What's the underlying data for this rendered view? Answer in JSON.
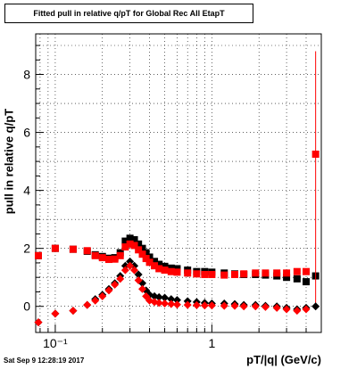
{
  "title": "Fitted pull in relative q/pT for Global Rec All EtapT",
  "footer": "Sat Sep  9 12:28:19 2017",
  "chart_data": {
    "type": "scatter",
    "title": "Fitted pull in relative q/pT for Global Rec All EtapT",
    "xlabel": "pT/|q| (GeV/c)",
    "ylabel": "pull in relative q/pT",
    "x_scale": "log",
    "xlim": [
      0.075,
      5.0
    ],
    "ylim": [
      -0.9,
      9.4
    ],
    "x_ticks": [
      {
        "value": 0.1,
        "label": "10⁻¹"
      },
      {
        "value": 1,
        "label": "1"
      }
    ],
    "y_ticks": [
      0,
      2,
      4,
      6,
      8
    ],
    "grid": true,
    "colors": {
      "black_series": "#000000",
      "red_series": "#ff0000"
    },
    "series": [
      {
        "marker": "square",
        "color": "#000000",
        "points": [
          [
            0.078,
            1.75
          ],
          [
            0.1,
            2.0
          ],
          [
            0.13,
            1.97
          ],
          [
            0.16,
            1.9
          ],
          [
            0.18,
            1.78
          ],
          [
            0.2,
            1.72
          ],
          [
            0.22,
            1.66
          ],
          [
            0.24,
            1.68
          ],
          [
            0.26,
            1.85
          ],
          [
            0.28,
            2.25
          ],
          [
            0.3,
            2.35
          ],
          [
            0.32,
            2.3
          ],
          [
            0.34,
            2.15
          ],
          [
            0.36,
            2.0
          ],
          [
            0.38,
            1.85
          ],
          [
            0.4,
            1.7
          ],
          [
            0.43,
            1.55
          ],
          [
            0.46,
            1.45
          ],
          [
            0.5,
            1.38
          ],
          [
            0.55,
            1.32
          ],
          [
            0.6,
            1.3
          ],
          [
            0.7,
            1.25
          ],
          [
            0.8,
            1.2
          ],
          [
            0.9,
            1.2
          ],
          [
            1.0,
            1.18
          ],
          [
            1.2,
            1.15
          ],
          [
            1.4,
            1.12
          ],
          [
            1.6,
            1.1
          ],
          [
            1.9,
            1.1
          ],
          [
            2.2,
            1.08
          ],
          [
            2.6,
            1.05
          ],
          [
            3.0,
            1.0
          ],
          [
            3.5,
            0.95
          ],
          [
            4.0,
            0.85
          ],
          [
            4.6,
            1.05
          ]
        ]
      },
      {
        "marker": "square",
        "color": "#ff0000",
        "points": [
          [
            0.078,
            1.75
          ],
          [
            0.1,
            2.0
          ],
          [
            0.13,
            1.97
          ],
          [
            0.16,
            1.92
          ],
          [
            0.18,
            1.75
          ],
          [
            0.2,
            1.68
          ],
          [
            0.22,
            1.62
          ],
          [
            0.24,
            1.63
          ],
          [
            0.26,
            1.75
          ],
          [
            0.28,
            2.05
          ],
          [
            0.3,
            2.15
          ],
          [
            0.32,
            2.1
          ],
          [
            0.34,
            1.95
          ],
          [
            0.36,
            1.8
          ],
          [
            0.38,
            1.65
          ],
          [
            0.4,
            1.52
          ],
          [
            0.43,
            1.4
          ],
          [
            0.46,
            1.3
          ],
          [
            0.5,
            1.25
          ],
          [
            0.55,
            1.2
          ],
          [
            0.6,
            1.18
          ],
          [
            0.7,
            1.15
          ],
          [
            0.8,
            1.12
          ],
          [
            0.9,
            1.1
          ],
          [
            1.0,
            1.1
          ],
          [
            1.2,
            1.08
          ],
          [
            1.4,
            1.1
          ],
          [
            1.6,
            1.12
          ],
          [
            1.9,
            1.15
          ],
          [
            2.2,
            1.15
          ],
          [
            2.6,
            1.15
          ],
          [
            3.0,
            1.15
          ],
          [
            3.5,
            1.2
          ],
          [
            4.0,
            1.2
          ],
          [
            4.6,
            5.25
          ]
        ],
        "error_bar_at": [
          4.6,
          0.0,
          8.8
        ]
      },
      {
        "marker": "diamond",
        "color": "#000000",
        "points": [
          [
            0.078,
            -0.55
          ],
          [
            0.1,
            -0.25
          ],
          [
            0.13,
            -0.15
          ],
          [
            0.16,
            0.05
          ],
          [
            0.18,
            0.25
          ],
          [
            0.2,
            0.4
          ],
          [
            0.22,
            0.6
          ],
          [
            0.24,
            0.8
          ],
          [
            0.26,
            1.05
          ],
          [
            0.28,
            1.4
          ],
          [
            0.3,
            1.55
          ],
          [
            0.32,
            1.4
          ],
          [
            0.34,
            1.1
          ],
          [
            0.36,
            0.8
          ],
          [
            0.38,
            0.55
          ],
          [
            0.4,
            0.4
          ],
          [
            0.43,
            0.35
          ],
          [
            0.46,
            0.32
          ],
          [
            0.5,
            0.3
          ],
          [
            0.55,
            0.25
          ],
          [
            0.6,
            0.22
          ],
          [
            0.7,
            0.18
          ],
          [
            0.8,
            0.15
          ],
          [
            0.9,
            0.12
          ],
          [
            1.0,
            0.1
          ],
          [
            1.2,
            0.1
          ],
          [
            1.4,
            0.08
          ],
          [
            1.6,
            0.05
          ],
          [
            1.9,
            0.05
          ],
          [
            2.2,
            0.02
          ],
          [
            2.6,
            0.0
          ],
          [
            3.0,
            -0.05
          ],
          [
            3.5,
            -0.1
          ],
          [
            4.0,
            -0.05
          ],
          [
            4.6,
            0.0
          ]
        ]
      },
      {
        "marker": "diamond",
        "color": "#ff0000",
        "points": [
          [
            0.078,
            -0.55
          ],
          [
            0.1,
            -0.25
          ],
          [
            0.13,
            -0.15
          ],
          [
            0.16,
            0.05
          ],
          [
            0.18,
            0.2
          ],
          [
            0.2,
            0.35
          ],
          [
            0.22,
            0.55
          ],
          [
            0.24,
            0.75
          ],
          [
            0.26,
            0.95
          ],
          [
            0.28,
            1.25
          ],
          [
            0.3,
            1.4
          ],
          [
            0.32,
            1.25
          ],
          [
            0.34,
            0.9
          ],
          [
            0.36,
            0.6
          ],
          [
            0.38,
            0.35
          ],
          [
            0.4,
            0.2
          ],
          [
            0.43,
            0.15
          ],
          [
            0.46,
            0.12
          ],
          [
            0.5,
            0.1
          ],
          [
            0.55,
            0.08
          ],
          [
            0.6,
            0.06
          ],
          [
            0.7,
            0.05
          ],
          [
            0.8,
            0.04
          ],
          [
            0.9,
            0.03
          ],
          [
            1.0,
            0.03
          ],
          [
            1.2,
            0.02
          ],
          [
            1.4,
            0.02
          ],
          [
            1.6,
            0.0
          ],
          [
            1.9,
            0.0
          ],
          [
            2.2,
            -0.02
          ],
          [
            2.6,
            -0.05
          ],
          [
            3.0,
            -0.1
          ],
          [
            3.5,
            -0.15
          ],
          [
            4.0,
            -0.1
          ]
        ]
      }
    ]
  }
}
